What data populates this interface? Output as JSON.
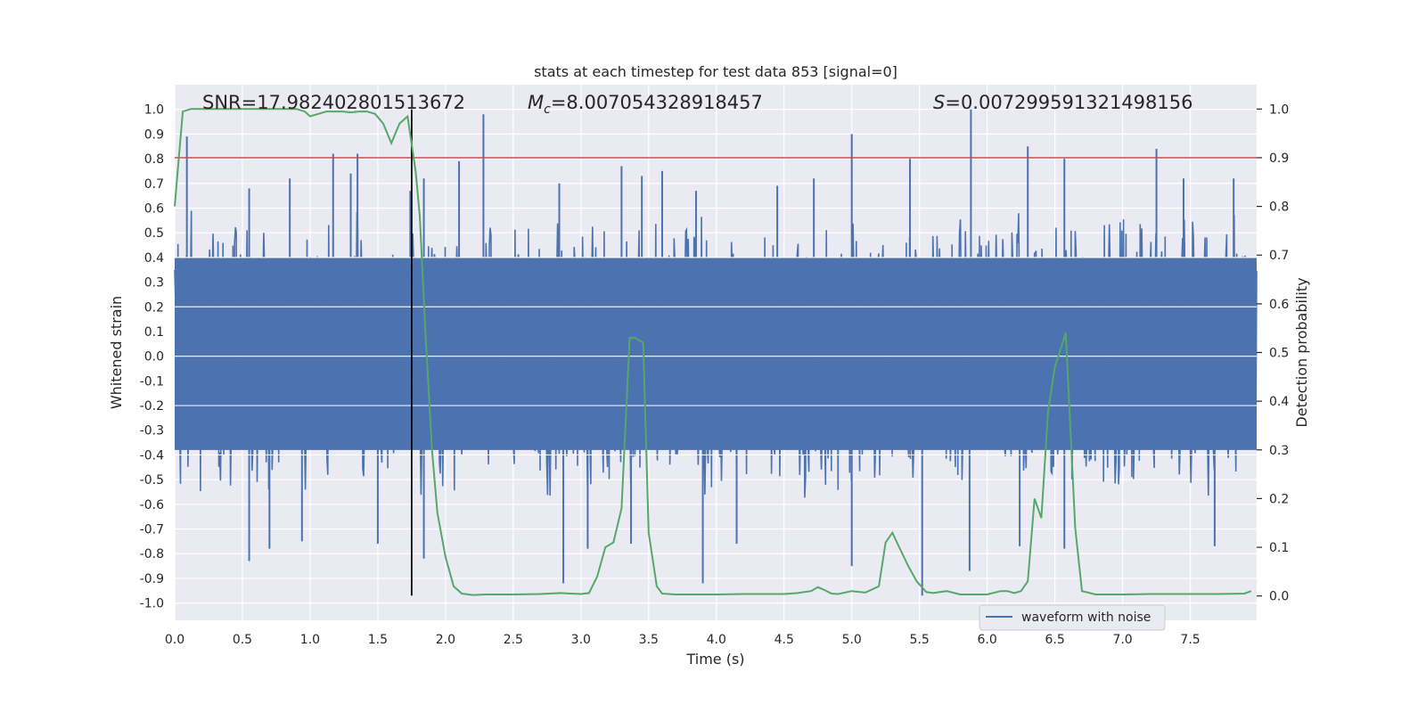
{
  "chart_data": {
    "type": "line",
    "title": "stats at each timestep for test data 853 [signal=0]",
    "xlabel": "Time (s)",
    "ylabel_left": "Whitened strain",
    "ylabel_right": "Detection probability",
    "xlim": [
      0.0,
      7.99
    ],
    "ylim_left": [
      -1.07,
      1.1
    ],
    "ylim_right": [
      -0.05,
      1.05
    ],
    "x_ticks": [
      0.0,
      0.5,
      1.0,
      1.5,
      2.0,
      2.5,
      3.0,
      3.5,
      4.0,
      4.5,
      5.0,
      5.5,
      6.0,
      6.5,
      7.0,
      7.5
    ],
    "x_tick_labels": [
      "0.0",
      "0.5",
      "1.0",
      "1.5",
      "2.0",
      "2.5",
      "3.0",
      "3.5",
      "4.0",
      "4.5",
      "5.0",
      "5.5",
      "6.0",
      "6.5",
      "7.0",
      "7.5"
    ],
    "y_left_ticks": [
      1.0,
      0.9,
      0.8,
      0.7,
      0.6,
      0.5,
      0.4,
      0.3,
      0.2,
      0.1,
      0.0,
      -0.1,
      -0.2,
      -0.3,
      -0.4,
      -0.5,
      -0.6,
      -0.7,
      -0.8,
      -0.9,
      -1.0
    ],
    "y_left_tick_labels": [
      "1.0",
      "0.9",
      "0.8",
      "0.7",
      "0.6",
      "0.5",
      "0.4",
      "0.3",
      "0.2",
      "0.1",
      "0.0",
      "-0.1",
      "-0.2",
      "-0.3",
      "-0.4",
      "-0.5",
      "-0.6",
      "-0.7",
      "-0.8",
      "-0.9",
      "-1.0"
    ],
    "y_right_ticks": [
      1.0,
      0.9,
      0.8,
      0.7,
      0.6,
      0.5,
      0.4,
      0.3,
      0.2,
      0.1,
      0.0
    ],
    "y_right_tick_labels": [
      "1.0",
      "0.9",
      "0.8",
      "0.7",
      "0.6",
      "0.5",
      "0.4",
      "0.3",
      "0.2",
      "0.1",
      "0.0"
    ],
    "annotations": {
      "snr": "SNR=17.982402801513672",
      "mc_symbol": "M",
      "mc_sub": "c",
      "mc_value": "=8.007054328918457",
      "s_symbol": "S",
      "s_value": "=0.007299591321498156"
    },
    "threshold": {
      "y_right": 0.9,
      "color": "#c44e52"
    },
    "vline": {
      "x": 1.75,
      "ymin_left": -0.97,
      "ymax_left": 1.0,
      "color": "#000000"
    },
    "series": [
      {
        "name": "waveform with noise",
        "axis": "left",
        "color": "#4c72b0",
        "envelope": {
          "x_start": 0.0,
          "x_end": 7.99,
          "band_upper": 0.4,
          "band_lower": -0.38,
          "typical_peak_upper": 0.55,
          "typical_peak_lower": -0.55,
          "notable_peaks_upper": [
            [
              0.09,
              0.89
            ],
            [
              0.55,
              0.68
            ],
            [
              0.85,
              0.72
            ],
            [
              1.17,
              0.82
            ],
            [
              1.3,
              0.74
            ],
            [
              1.35,
              0.82
            ],
            [
              1.74,
              0.67
            ],
            [
              1.84,
              0.72
            ],
            [
              2.1,
              0.79
            ],
            [
              2.28,
              0.98
            ],
            [
              2.84,
              0.7
            ],
            [
              3.3,
              0.77
            ],
            [
              3.45,
              0.73
            ],
            [
              3.6,
              0.75
            ],
            [
              3.85,
              0.67
            ],
            [
              4.45,
              0.69
            ],
            [
              4.72,
              0.72
            ],
            [
              5.0,
              0.9
            ],
            [
              5.43,
              0.8
            ],
            [
              5.88,
              1.0
            ],
            [
              6.3,
              0.85
            ],
            [
              6.57,
              0.8
            ],
            [
              7.25,
              0.84
            ],
            [
              7.45,
              0.72
            ],
            [
              7.82,
              0.72
            ]
          ],
          "notable_peaks_lower": [
            [
              0.55,
              -0.83
            ],
            [
              0.7,
              -0.78
            ],
            [
              0.94,
              -0.75
            ],
            [
              1.5,
              -0.76
            ],
            [
              1.84,
              -0.82
            ],
            [
              2.87,
              -0.92
            ],
            [
              3.05,
              -0.78
            ],
            [
              3.37,
              -0.76
            ],
            [
              3.9,
              -0.92
            ],
            [
              4.15,
              -0.76
            ],
            [
              5.0,
              -0.85
            ],
            [
              5.52,
              -0.97
            ],
            [
              5.87,
              -0.87
            ],
            [
              6.24,
              -0.77
            ],
            [
              6.57,
              -0.78
            ],
            [
              7.68,
              -0.77
            ]
          ]
        }
      },
      {
        "name": "Detection probability",
        "axis": "right",
        "color": "#55a868",
        "x": [
          0.0,
          0.06,
          0.12,
          0.18,
          0.24,
          0.3,
          0.36,
          0.42,
          0.48,
          0.54,
          0.6,
          0.66,
          0.72,
          0.78,
          0.84,
          0.9,
          0.96,
          1.0,
          1.06,
          1.12,
          1.18,
          1.24,
          1.3,
          1.36,
          1.42,
          1.48,
          1.54,
          1.6,
          1.66,
          1.72,
          1.78,
          1.81,
          1.85,
          1.9,
          1.94,
          2.0,
          2.06,
          2.12,
          2.2,
          2.3,
          2.5,
          2.7,
          2.85,
          3.0,
          3.06,
          3.12,
          3.18,
          3.24,
          3.3,
          3.36,
          3.4,
          3.46,
          3.5,
          3.56,
          3.6,
          3.7,
          3.8,
          4.0,
          4.2,
          4.5,
          4.6,
          4.7,
          4.75,
          4.8,
          4.85,
          4.9,
          5.0,
          5.1,
          5.2,
          5.25,
          5.3,
          5.35,
          5.42,
          5.48,
          5.55,
          5.6,
          5.7,
          5.8,
          6.0,
          6.1,
          6.15,
          6.2,
          6.25,
          6.3,
          6.35,
          6.4,
          6.45,
          6.5,
          6.58,
          6.65,
          6.7,
          6.8,
          7.0,
          7.2,
          7.5,
          7.7,
          7.9,
          7.95
        ],
        "y": [
          0.8,
          0.995,
          1.0,
          1.0,
          1.0,
          1.0,
          1.0,
          1.0,
          1.0,
          1.0,
          1.0,
          1.0,
          1.0,
          1.0,
          1.0,
          1.0,
          0.995,
          0.985,
          0.99,
          0.995,
          0.995,
          0.995,
          0.993,
          0.995,
          0.995,
          0.99,
          0.97,
          0.93,
          0.97,
          0.985,
          0.87,
          0.78,
          0.55,
          0.3,
          0.17,
          0.08,
          0.02,
          0.005,
          0.002,
          0.003,
          0.003,
          0.004,
          0.006,
          0.004,
          0.006,
          0.04,
          0.1,
          0.11,
          0.18,
          0.53,
          0.53,
          0.52,
          0.13,
          0.02,
          0.005,
          0.003,
          0.003,
          0.003,
          0.004,
          0.004,
          0.006,
          0.01,
          0.018,
          0.012,
          0.005,
          0.004,
          0.01,
          0.007,
          0.02,
          0.11,
          0.13,
          0.1,
          0.06,
          0.03,
          0.008,
          0.006,
          0.01,
          0.003,
          0.003,
          0.01,
          0.01,
          0.006,
          0.01,
          0.03,
          0.2,
          0.16,
          0.38,
          0.47,
          0.54,
          0.14,
          0.01,
          0.003,
          0.003,
          0.004,
          0.004,
          0.004,
          0.005,
          0.01
        ]
      }
    ],
    "legend": {
      "placement": "lower-center-right",
      "entries": [
        "waveform with noise"
      ]
    }
  }
}
